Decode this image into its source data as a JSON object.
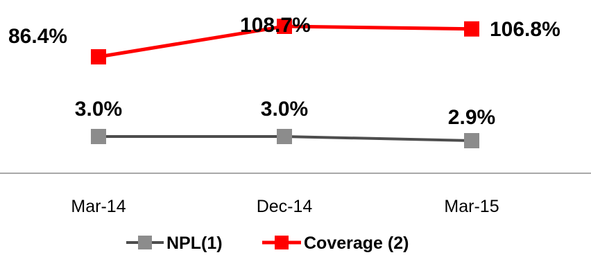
{
  "chart_data": {
    "type": "line",
    "title": "",
    "xlabel": "",
    "ylabel": "",
    "categories": [
      "Mar-14",
      "Dec-14",
      "Mar-15"
    ],
    "grid": false,
    "legend": "bottom-center",
    "series": [
      {
        "name": "NPL(1)",
        "values": [
          3.0,
          3.0,
          2.9
        ],
        "labels": [
          "3.0%",
          "3.0%",
          "2.9%"
        ],
        "color": "#4d4d4d",
        "marker_color": "#8c8c8c"
      },
      {
        "name": "Coverage (2)",
        "values": [
          86.4,
          108.7,
          106.8
        ],
        "labels": [
          "86.4%",
          "108.7%",
          "106.8%"
        ],
        "color": "#ff0000",
        "marker_color": "#ff0000"
      }
    ]
  }
}
